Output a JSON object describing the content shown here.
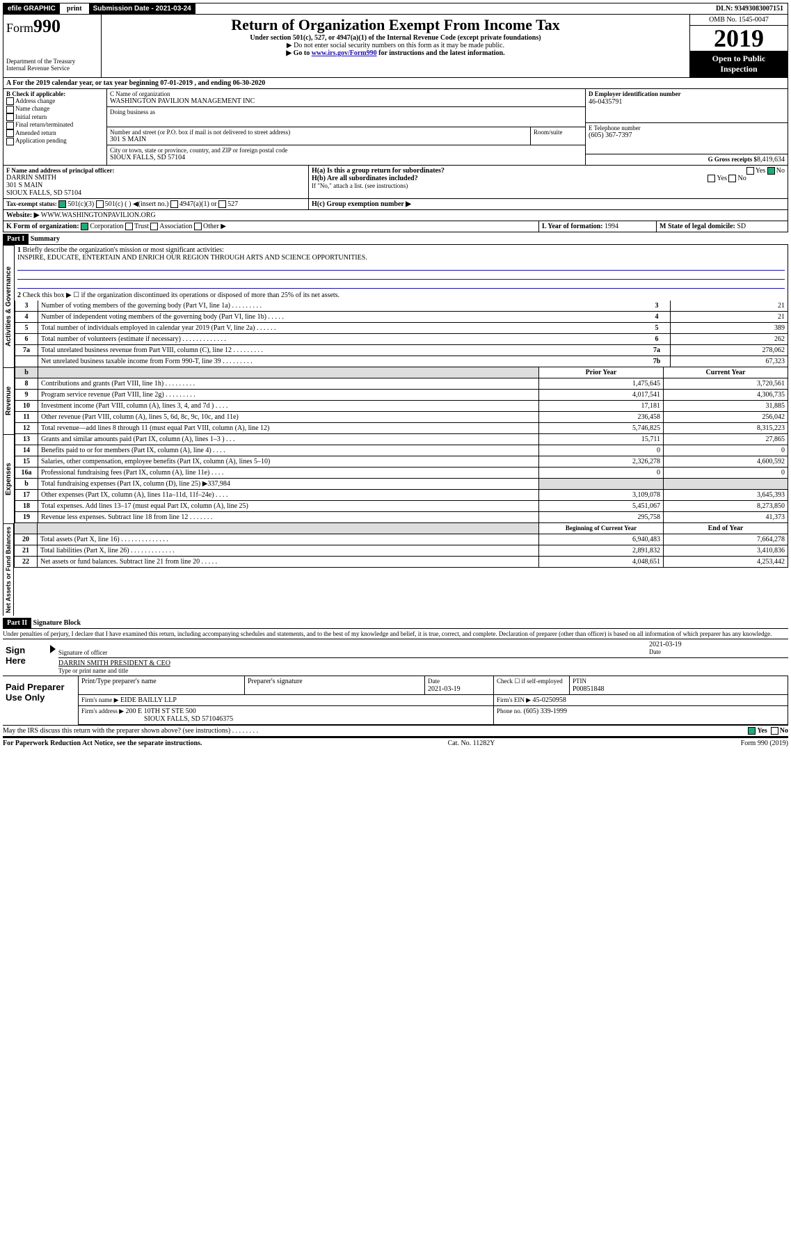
{
  "topbar": {
    "efile": "efile GRAPHIC",
    "print": "print",
    "subdate_lbl": "Submission Date - 2021-03-24",
    "dln": "DLN: 93493083007151"
  },
  "header": {
    "form": "Form",
    "num": "990",
    "dept": "Department of the Treasury",
    "irs": "Internal Revenue Service",
    "title": "Return of Organization Exempt From Income Tax",
    "sub1": "Under section 501(c), 527, or 4947(a)(1) of the Internal Revenue Code (except private foundations)",
    "sub2": "▶ Do not enter social security numbers on this form as it may be made public.",
    "sub3_a": "▶ Go to ",
    "sub3_link": "www.irs.gov/Form990",
    "sub3_b": " for instructions and the latest information.",
    "omb": "OMB No. 1545-0047",
    "year": "2019",
    "open": "Open to Public Inspection"
  },
  "A": {
    "line": "A For the 2019 calendar year, or tax year beginning 07-01-2019    , and ending 06-30-2020"
  },
  "B": {
    "hdr": "B Check if applicable:",
    "items": [
      "Address change",
      "Name change",
      "Initial return",
      "Final return/terminated",
      "Amended return",
      "Application pending"
    ]
  },
  "C": {
    "name_lbl": "C Name of organization",
    "name": "WASHINGTON PAVILION MANAGEMENT INC",
    "dba_lbl": "Doing business as",
    "street_lbl": "Number and street (or P.O. box if mail is not delivered to street address)",
    "room_lbl": "Room/suite",
    "street": "301 S MAIN",
    "city_lbl": "City or town, state or province, country, and ZIP or foreign postal code",
    "city": "SIOUX FALLS, SD  57104"
  },
  "D": {
    "lbl": "D Employer identification number",
    "val": "46-0435791"
  },
  "E": {
    "lbl": "E Telephone number",
    "val": "(605) 367-7397"
  },
  "G": {
    "lbl": "G Gross receipts $",
    "val": "8,419,634"
  },
  "F": {
    "lbl": "F  Name and address of principal officer:",
    "name": "DARRIN SMITH",
    "street": "301 S MAIN",
    "city": "SIOUX FALLS, SD  57104"
  },
  "H": {
    "a": "H(a)  Is this a group return for subordinates?",
    "b": "H(b)  Are all subordinates included?",
    "note": "If \"No,\" attach a list. (see instructions)",
    "c": "H(c)  Group exemption number ▶",
    "yes": "Yes",
    "no": "No"
  },
  "I": {
    "lbl": "Tax-exempt status:",
    "o1": "501(c)(3)",
    "o2": "501(c) (  ) ◀(insert no.)",
    "o3": "4947(a)(1) or",
    "o4": "527"
  },
  "J": {
    "lbl": "Website: ▶",
    "val": "WWW.WASHINGTONPAVILION.ORG"
  },
  "K": {
    "lbl": "K Form of organization:",
    "o1": "Corporation",
    "o2": "Trust",
    "o3": "Association",
    "o4": "Other ▶"
  },
  "L": {
    "lbl": "L Year of formation:",
    "val": "1994"
  },
  "M": {
    "lbl": "M State of legal domicile:",
    "val": "SD"
  },
  "part1": {
    "hdr": "Part I",
    "title": "Summary"
  },
  "s1": {
    "l1": "Briefly describe the organization's mission or most significant activities:",
    "mission": "INSPIRE, EDUCATE, ENTERTAIN AND ENRICH OUR REGION THROUGH ARTS AND SCIENCE OPPORTUNITIES.",
    "l2": "Check this box ▶ ☐  if the organization discontinued its operations or disposed of more than 25% of its net assets.",
    "rows": [
      {
        "n": "3",
        "t": "Number of voting members of the governing body (Part VI, line 1a)  .    .    .    .    .    .    .    .    .",
        "c": "3",
        "v": "21"
      },
      {
        "n": "4",
        "t": "Number of independent voting members of the governing body (Part VI, line 1b)   .    .    .    .    .",
        "c": "4",
        "v": "21"
      },
      {
        "n": "5",
        "t": "Total number of individuals employed in calendar year 2019 (Part V, line 2a)   .    .    .    .    .    .",
        "c": "5",
        "v": "389"
      },
      {
        "n": "6",
        "t": "Total number of volunteers (estimate if necessary)   .    .    .    .    .    .    .    .    .    .    .    .    .",
        "c": "6",
        "v": "262"
      },
      {
        "n": "7a",
        "t": "Total unrelated business revenue from Part VIII, column (C), line 12  .    .    .    .    .    .    .    .    .",
        "c": "7a",
        "v": "278,062"
      },
      {
        "n": "",
        "t": "Net unrelated business taxable income from Form 990-T, line 39   .    .    .    .    .    .    .    .    .",
        "c": "7b",
        "v": "67,323"
      }
    ],
    "vlabel": "Activities & Governance"
  },
  "rev": {
    "vlabel": "Revenue",
    "prior": "Prior Year",
    "curr": "Current Year",
    "rows": [
      {
        "n": "8",
        "t": "Contributions and grants (Part VIII, line 1h)   .    .    .    .    .    .    .    .    .",
        "p": "1,475,645",
        "c": "3,720,561"
      },
      {
        "n": "9",
        "t": "Program service revenue (Part VIII, line 2g)   .    .    .    .    .    .    .    .    .",
        "p": "4,017,541",
        "c": "4,306,735"
      },
      {
        "n": "10",
        "t": "Investment income (Part VIII, column (A), lines 3, 4, and 7d )   .    .    .    .",
        "p": "17,181",
        "c": "31,885"
      },
      {
        "n": "11",
        "t": "Other revenue (Part VIII, column (A), lines 5, 6d, 8c, 9c, 10c, and 11e)",
        "p": "236,458",
        "c": "256,042"
      },
      {
        "n": "12",
        "t": "Total revenue—add lines 8 through 11 (must equal Part VIII, column (A), line 12)",
        "p": "5,746,825",
        "c": "8,315,223"
      }
    ]
  },
  "exp": {
    "vlabel": "Expenses",
    "rows": [
      {
        "n": "13",
        "t": "Grants and similar amounts paid (Part IX, column (A), lines 1–3 )   .    .    .",
        "p": "15,711",
        "c": "27,865"
      },
      {
        "n": "14",
        "t": "Benefits paid to or for members (Part IX, column (A), line 4)   .    .    .    .",
        "p": "0",
        "c": "0"
      },
      {
        "n": "15",
        "t": "Salaries, other compensation, employee benefits (Part IX, column (A), lines 5–10)",
        "p": "2,326,278",
        "c": "4,600,592"
      },
      {
        "n": "16a",
        "t": "Professional fundraising fees (Part IX, column (A), line 11e)   .    .    .    .",
        "p": "0",
        "c": "0"
      },
      {
        "n": "b",
        "t": "Total fundraising expenses (Part IX, column (D), line 25) ▶337,984",
        "p": "",
        "c": "",
        "shade": true
      },
      {
        "n": "17",
        "t": "Other expenses (Part IX, column (A), lines 11a–11d, 11f–24e)   .    .    .    .",
        "p": "3,109,078",
        "c": "3,645,393"
      },
      {
        "n": "18",
        "t": "Total expenses. Add lines 13–17 (must equal Part IX, column (A), line 25)",
        "p": "5,451,067",
        "c": "8,273,850"
      },
      {
        "n": "19",
        "t": "Revenue less expenses. Subtract line 18 from line 12   .    .    .    .    .    .    .",
        "p": "295,758",
        "c": "41,373"
      }
    ]
  },
  "net": {
    "vlabel": "Net Assets or Fund Balances",
    "h1": "Beginning of Current Year",
    "h2": "End of Year",
    "rows": [
      {
        "n": "20",
        "t": "Total assets (Part X, line 16)   .    .    .    .    .    .    .    .    .    .    .    .    .    .",
        "p": "6,940,483",
        "c": "7,664,278"
      },
      {
        "n": "21",
        "t": "Total liabilities (Part X, line 26)   .    .    .    .    .    .    .    .    .    .    .    .    .",
        "p": "2,891,832",
        "c": "3,410,836"
      },
      {
        "n": "22",
        "t": "Net assets or fund balances. Subtract line 21 from line 20   .    .    .    .    .",
        "p": "4,048,651",
        "c": "4,253,442"
      }
    ]
  },
  "part2": {
    "hdr": "Part II",
    "title": "Signature Block",
    "decl": "Under penalties of perjury, I declare that I have examined this return, including accompanying schedules and statements, and to the best of my knowledge and belief, it is true, correct, and complete. Declaration of preparer (other than officer) is based on all information of which preparer has any knowledge."
  },
  "sign": {
    "here": "Sign Here",
    "sig_lbl": "Signature of officer",
    "date": "2021-03-19",
    "date_lbl": "Date",
    "name": "DARRIN SMITH PRESIDENT & CEO",
    "name_lbl": "Type or print name and title"
  },
  "prep": {
    "here": "Paid Preparer Use Only",
    "h1": "Print/Type preparer's name",
    "h2": "Preparer's signature",
    "h3": "Date",
    "h4": "Check ☐ if self-employed",
    "h5": "PTIN",
    "date": "2021-03-19",
    "ptin": "P00851848",
    "firm_lbl": "Firm's name      ▶",
    "firm": "EIDE BAILLY LLP",
    "ein_lbl": "Firm's EIN ▶",
    "ein": "45-0250958",
    "addr_lbl": "Firm's address ▶",
    "addr": "200 E 10TH ST STE 500",
    "addr2": "SIOUX FALLS, SD  571046375",
    "ph_lbl": "Phone no.",
    "ph": "(605) 339-1999"
  },
  "discuss": {
    "q": "May the IRS discuss this return with the preparer shown above? (see instructions)    .    .    .    .    .    .    .    .",
    "yes": "Yes",
    "no": "No"
  },
  "foot": {
    "l": "For Paperwork Reduction Act Notice, see the separate instructions.",
    "c": "Cat. No. 11282Y",
    "r": "Form 990 (2019)"
  }
}
